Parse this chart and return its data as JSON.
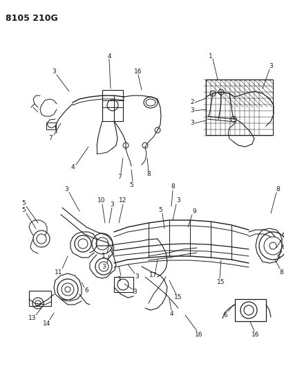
{
  "title": "8105 210G",
  "bg_color": "#ffffff",
  "line_color": "#1a1a1a",
  "label_color": "#1a1a1a",
  "label_fontsize": 6.5,
  "fig_width": 4.11,
  "fig_height": 5.33,
  "dpi": 100
}
